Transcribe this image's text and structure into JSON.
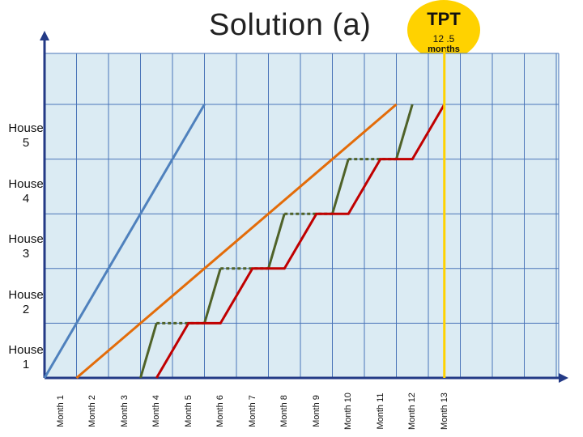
{
  "title": "Solution (a)",
  "tpt_badge": {
    "title": "TPT",
    "value": "12 .5",
    "unit": "months"
  },
  "houses": [
    {
      "line1": "House",
      "line2": "5"
    },
    {
      "line1": "House",
      "line2": "4"
    },
    {
      "line1": "House",
      "line2": "3"
    },
    {
      "line1": "House",
      "line2": "2"
    },
    {
      "line1": "House",
      "line2": "1"
    }
  ],
  "months": [
    "Month 1",
    "Month 2",
    "Month 3",
    "Month 4",
    "Month 5",
    "Month 6",
    "Month 7",
    "Month 8",
    "Month 9",
    "Month 10",
    "Month 11",
    "Month 12",
    "Month 13"
  ],
  "colors": {
    "plot_background": "#dbebf3",
    "grid": "#4a74b8",
    "axis": "#233a86",
    "blue_line": "#4f81bd",
    "orange_line": "#e36c09",
    "green_line": "#4f6228",
    "red_line": "#c00000",
    "tpt_line": "#ffd200"
  },
  "chart_data": {
    "type": "line",
    "xlabel": "",
    "ylabel": "",
    "units_x": "months",
    "units_y": "houses completed",
    "xlim": [
      0,
      16
    ],
    "ylim": [
      0,
      5
    ],
    "categories_x": [
      "Month 1",
      "Month 2",
      "Month 3",
      "Month 4",
      "Month 5",
      "Month 6",
      "Month 7",
      "Month 8",
      "Month 9",
      "Month 10",
      "Month 11",
      "Month 12",
      "Month 13"
    ],
    "series": [
      {
        "key": "blue",
        "points": [
          [
            0,
            0
          ],
          [
            5,
            5
          ]
        ]
      },
      {
        "key": "orange",
        "points": [
          [
            1,
            0
          ],
          [
            11,
            5
          ]
        ]
      },
      {
        "key": "green",
        "dash_segments": [
          [
            1,
            2
          ],
          [
            3,
            4
          ],
          [
            5,
            6
          ],
          [
            7,
            8
          ]
        ],
        "points": [
          [
            3,
            0
          ],
          [
            3.5,
            1
          ],
          [
            5,
            1
          ],
          [
            5.5,
            2
          ],
          [
            7,
            2
          ],
          [
            7.5,
            3
          ],
          [
            9,
            3
          ],
          [
            9.5,
            4
          ],
          [
            11,
            4
          ],
          [
            11.5,
            5
          ]
        ]
      },
      {
        "key": "red",
        "points": [
          [
            3.5,
            0
          ],
          [
            4.5,
            1
          ],
          [
            5.5,
            1
          ],
          [
            6.5,
            2
          ],
          [
            7.5,
            2
          ],
          [
            8.5,
            3
          ],
          [
            9.5,
            3
          ],
          [
            10.5,
            4
          ],
          [
            11.5,
            4
          ],
          [
            12.5,
            5
          ]
        ]
      }
    ],
    "tpt_marker_x": 12.5
  }
}
